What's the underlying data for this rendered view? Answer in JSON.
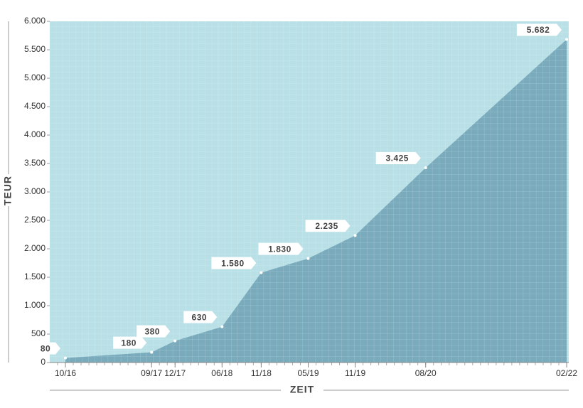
{
  "chart_data": {
    "type": "area",
    "x": [
      "10/16",
      "09/17",
      "12/17",
      "06/18",
      "11/18",
      "05/19",
      "11/19",
      "08/20",
      "02/22"
    ],
    "values": [
      80,
      180,
      380,
      630,
      1580,
      1830,
      2235,
      3425,
      5682
    ],
    "value_labels": [
      "80",
      "180",
      "380",
      "630",
      "1.580",
      "1.830",
      "2.235",
      "3.425",
      "5.682"
    ],
    "color": "#7aabbd",
    "ylabel": "TEUR",
    "xlabel": "ZEIT",
    "ylim": [
      0,
      6000
    ],
    "yticks": [
      0,
      500,
      {
        "value": 1000,
        "label": "1.000"
      },
      {
        "value": 1500,
        "label": "1.500"
      },
      {
        "value": 2000,
        "label": "2.000"
      },
      {
        "value": 2500,
        "label": "2.500"
      },
      {
        "value": 3000,
        "label": "3.000"
      },
      {
        "value": 3500,
        "label": "3.500"
      },
      {
        "value": 4000,
        "label": "4.000"
      },
      {
        "value": 4500,
        "label": "4.500"
      },
      {
        "value": 5000,
        "label": "5.000"
      },
      {
        "value": 5500,
        "label": "5.500"
      },
      {
        "value": 6000,
        "label": "6.000"
      }
    ],
    "grid": true
  }
}
